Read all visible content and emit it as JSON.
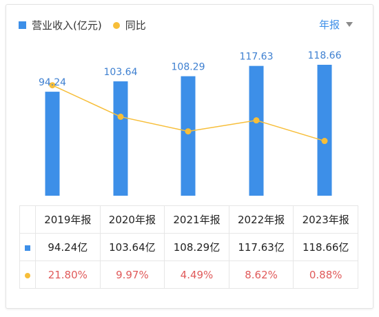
{
  "legend": {
    "revenue": "营业收入(亿元)",
    "yoy": "同比"
  },
  "period_selector": {
    "label": "年报"
  },
  "colors": {
    "bar": "#3d8fe8",
    "line": "#f7be39",
    "pct_text": "#e05a5a"
  },
  "chart_data": {
    "type": "bar",
    "categories": [
      "2019年报",
      "2020年报",
      "2021年报",
      "2022年报",
      "2023年报"
    ],
    "series": [
      {
        "name": "营业收入(亿元)",
        "type": "bar",
        "values": [
          94.24,
          103.64,
          108.29,
          117.63,
          118.66
        ],
        "labels": [
          "94.24",
          "103.64",
          "108.29",
          "117.63",
          "118.66"
        ]
      },
      {
        "name": "同比",
        "type": "line",
        "values": [
          21.8,
          9.97,
          4.49,
          8.62,
          0.88
        ]
      }
    ],
    "bar_ylim": [
      0,
      118.66
    ],
    "line_ylim": [
      -7,
      22.5
    ],
    "grid": false,
    "legend_position": "top-left"
  },
  "table": {
    "headers": [
      "2019年报",
      "2020年报",
      "2021年报",
      "2022年报",
      "2023年报"
    ],
    "revenue_row": [
      "94.24亿",
      "103.64亿",
      "108.29亿",
      "117.63亿",
      "118.66亿"
    ],
    "yoy_row": [
      "21.80%",
      "9.97%",
      "4.49%",
      "8.62%",
      "0.88%"
    ]
  }
}
